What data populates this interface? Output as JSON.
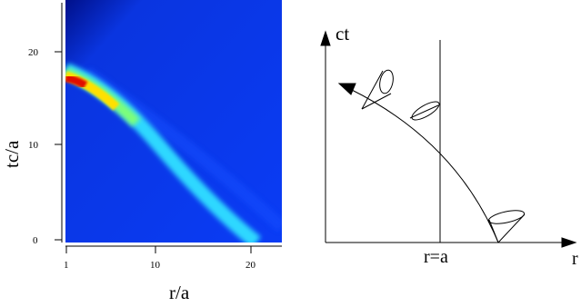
{
  "left_panel": {
    "ylabel": "tc/a",
    "xlabel": "r/a",
    "yticks": [
      "0",
      "10",
      "20"
    ],
    "xticks": [
      "1",
      "10",
      "20"
    ]
  },
  "right_panel": {
    "vertical_axis_label": "ct",
    "horizontal_axis_label": "r",
    "line_label": "r=a"
  },
  "colors": {
    "background_field": "#0a3cf0",
    "hot": "#e01000",
    "warm": "#ffd800",
    "cool": "#30e0ff"
  }
}
